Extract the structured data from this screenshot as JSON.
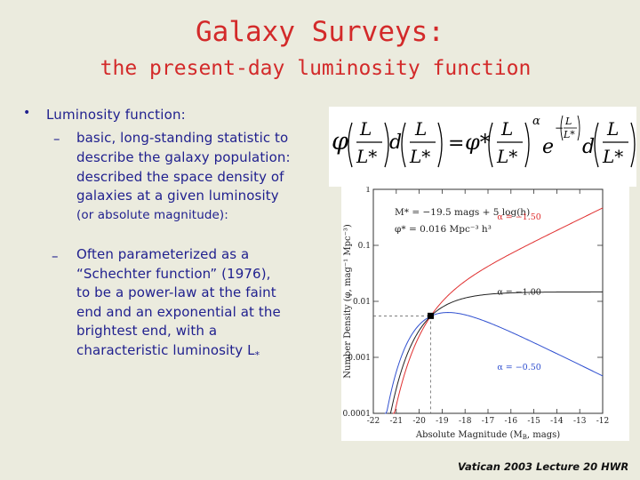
{
  "title": "Galaxy Surveys:",
  "subtitle": "the present-day luminosity function",
  "bullet1": {
    "marker": "•",
    "label": "Luminosity function:",
    "sub1": {
      "dash": "–",
      "lines": [
        "basic, long-standing statistic to",
        "describe the galaxy population:",
        "described the space density of",
        "galaxies at a given luminosity"
      ],
      "small": "(or absolute magnitude):"
    },
    "sub2": {
      "dash": "–",
      "lines": [
        "Often parameterized as a",
        "“Schechter function” (1976),",
        "to be a power-law at the faint",
        "end and an exponential at the",
        "brightest end, with a"
      ],
      "last_prefix": "characteristic luminosity L",
      "last_sub": "*"
    }
  },
  "formula": {
    "phi": "φ",
    "L": "L",
    "Lstar": "L*",
    "d": "d",
    "eq": "=",
    "phistar": "φ*",
    "alpha": "α",
    "e": "e",
    "minus": "−"
  },
  "footer": "Vatican 2003 Lecture 20 HWR",
  "chart_data": {
    "type": "line",
    "xlabel": "Absolute Magnitude (M",
    "xlabel_sub": "B",
    "xlabel_tail": ", mags)",
    "ylabel": "Number Density (φ, mag⁻¹ Mpc⁻³)",
    "x_ticks": [
      "-22",
      "-21",
      "-20",
      "-19",
      "-18",
      "-17",
      "-16",
      "-15",
      "-14",
      "-13",
      "-12"
    ],
    "xlim": [
      -22,
      -12
    ],
    "y_ticks": [
      "0.0001",
      "0.001",
      "0.01",
      "0.1",
      "1"
    ],
    "ylim": [
      0.0001,
      1
    ],
    "y_scale": "log",
    "annotations": [
      "M* = −19.5 mags + 5 log(h)",
      "φ* = 0.016 Mpc⁻³ h³"
    ],
    "params": {
      "Mstar": -19.5,
      "phistar": 0.016
    },
    "series": [
      {
        "name": "α = −1.50",
        "alpha": -1.5,
        "color": "#e03030"
      },
      {
        "name": "α = −1.00",
        "alpha": -1.0,
        "color": "#222222"
      },
      {
        "name": "α = −0.50",
        "alpha": -0.5,
        "color": "#3050d0"
      }
    ],
    "knee_point": {
      "x": -19.5,
      "y": 0.0055
    },
    "grid": false
  }
}
